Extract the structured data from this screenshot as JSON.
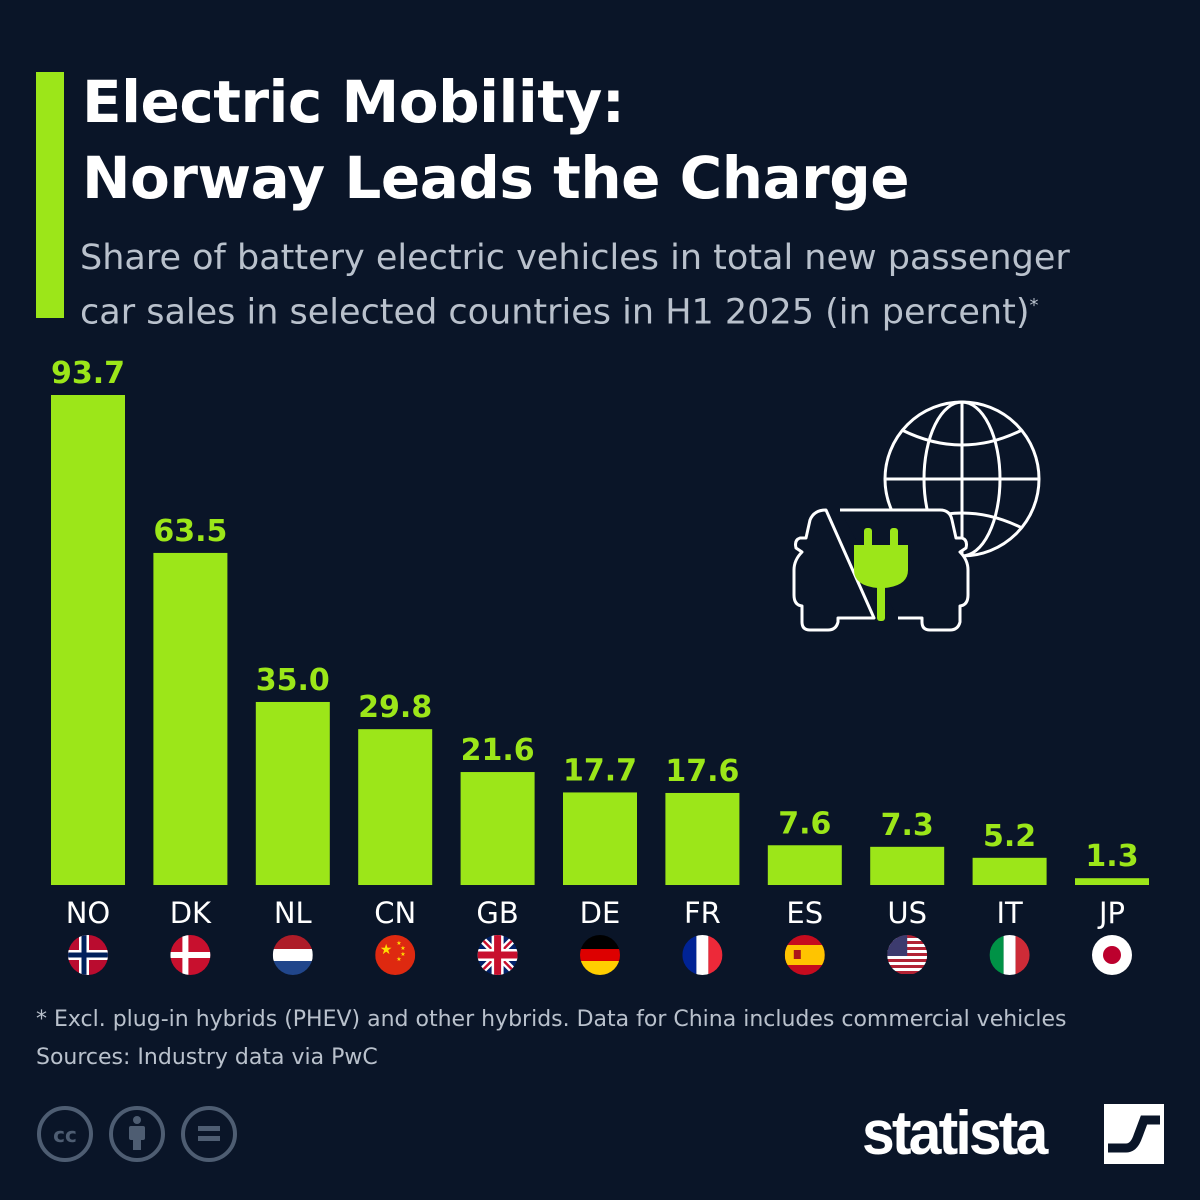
{
  "title_line1": "Electric Mobility:",
  "title_line2": "Norway Leads the Charge",
  "subtitle_line1": "Share of battery electric vehicles in total new passenger",
  "subtitle_line2": "car sales in selected countries in H1 2025 (in percent)",
  "subtitle_mark": "*",
  "footnote": "* Excl. plug-in hybrids (PHEV) and other hybrids. Data for China includes commercial vehicles",
  "sources": "Sources: Industry data via PwC",
  "brand": "statista",
  "colors": {
    "background": "#0a1528",
    "bar": "#9ce619",
    "text": "#ffffff",
    "muted": "#b9c1cc"
  },
  "icons": [
    "creative-commons-icon",
    "attribution-icon",
    "no-derivatives-icon",
    "car-plug-globe-illustration"
  ],
  "chart_data": {
    "type": "bar",
    "categories": [
      "NO",
      "DK",
      "NL",
      "CN",
      "GB",
      "DE",
      "FR",
      "ES",
      "US",
      "IT",
      "JP"
    ],
    "values": [
      93.7,
      63.5,
      35.0,
      29.8,
      21.6,
      17.7,
      17.6,
      7.6,
      7.3,
      5.2,
      1.3
    ],
    "labels": [
      "93.7",
      "63.5",
      "35.0",
      "29.8",
      "21.6",
      "17.7",
      "17.6",
      "7.6",
      "7.3",
      "5.2",
      "1.3"
    ],
    "ylim": [
      0,
      93.7
    ],
    "grid": false,
    "data_labels": true
  }
}
